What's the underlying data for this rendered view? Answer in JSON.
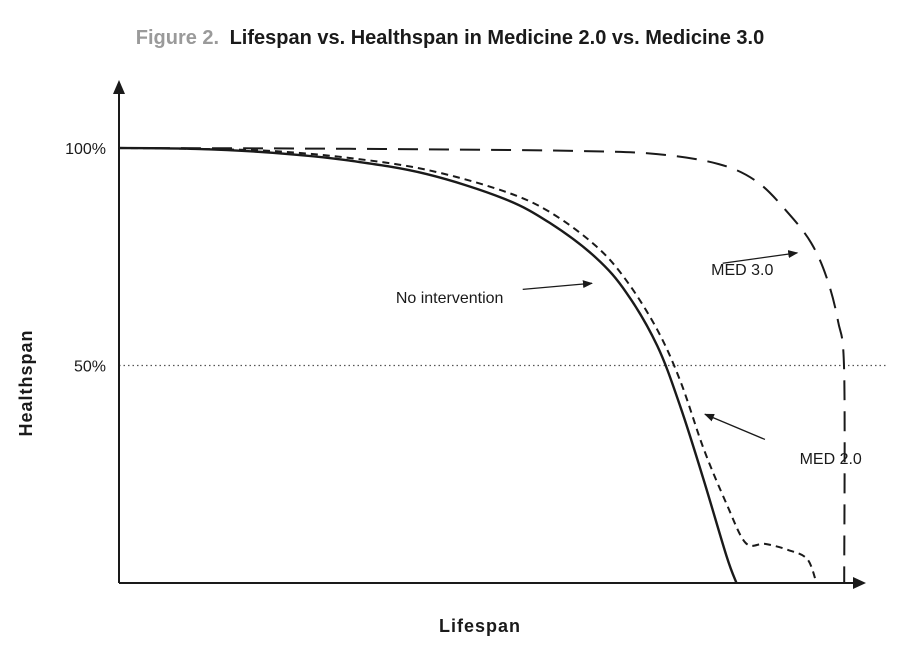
{
  "chart_data": {
    "type": "line",
    "title_prefix": "Figure 2.",
    "title": "Lifespan vs. Healthspan in Medicine 2.0 vs. Medicine 3.0",
    "xlabel": "Lifespan",
    "ylabel": "Healthspan",
    "xlim": [
      0,
      100
    ],
    "ylim": [
      0,
      100
    ],
    "yticks": [
      {
        "value": 100,
        "label": "100%"
      },
      {
        "value": 50,
        "label": "50%"
      }
    ],
    "reference_line": {
      "y": 50,
      "style": "dotted"
    },
    "series": [
      {
        "name": "No intervention",
        "style": "solid",
        "points": [
          [
            0,
            100
          ],
          [
            10,
            99.8
          ],
          [
            20,
            98.9
          ],
          [
            30,
            97.1
          ],
          [
            40,
            94.0
          ],
          [
            50,
            88.4
          ],
          [
            56,
            82.8
          ],
          [
            62,
            74.8
          ],
          [
            66,
            66.7
          ],
          [
            70,
            54.5
          ],
          [
            73,
            40.5
          ],
          [
            76,
            23.9
          ],
          [
            79,
            6.2
          ],
          [
            80.3,
            0
          ]
        ]
      },
      {
        "name": "MED 2.0",
        "style": "dashed",
        "points": [
          [
            0,
            100
          ],
          [
            10,
            99.8
          ],
          [
            20,
            99.3
          ],
          [
            30,
            97.7
          ],
          [
            40,
            95.0
          ],
          [
            50,
            90.1
          ],
          [
            56,
            85.3
          ],
          [
            62,
            77.5
          ],
          [
            66,
            69.5
          ],
          [
            70,
            58.2
          ],
          [
            73,
            46.4
          ],
          [
            76,
            31.0
          ],
          [
            79,
            18.2
          ],
          [
            81.5,
            9.2
          ],
          [
            84,
            9.0
          ],
          [
            87,
            7.6
          ],
          [
            89.5,
            5.5
          ],
          [
            90.7,
            0
          ]
        ]
      },
      {
        "name": "MED 3.0",
        "style": "long-dashed",
        "points": [
          [
            0,
            100
          ],
          [
            20,
            99.9
          ],
          [
            40,
            99.7
          ],
          [
            60,
            99.3
          ],
          [
            70,
            98.6
          ],
          [
            78,
            96.3
          ],
          [
            83,
            92.2
          ],
          [
            87,
            85.1
          ],
          [
            90,
            78.2
          ],
          [
            92,
            70.3
          ],
          [
            93.5,
            60.2
          ],
          [
            94.3,
            48.3
          ],
          [
            94.3,
            0
          ]
        ]
      }
    ],
    "annotations": [
      {
        "text": "No intervention",
        "label_xy": [
          36,
          65.5
        ],
        "anchor": "end",
        "arrow_from": [
          52.5,
          67.5
        ],
        "arrow_to": [
          61.5,
          68.9
        ]
      },
      {
        "text": "MED 2.0",
        "label_xy": [
          88.5,
          28.5
        ],
        "anchor": "end",
        "arrow_from": [
          84,
          33
        ],
        "arrow_to": [
          76.2,
          38.8
        ]
      },
      {
        "text": "MED 3.0",
        "label_xy": [
          77,
          72
        ],
        "anchor": "end",
        "arrow_from": [
          78.5,
          73.5
        ],
        "arrow_to": [
          88.2,
          75.9
        ]
      }
    ]
  }
}
